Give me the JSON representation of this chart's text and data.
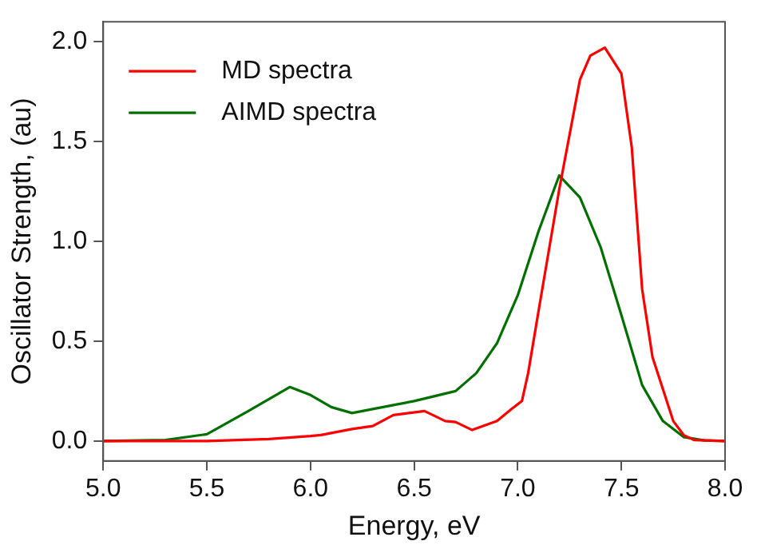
{
  "chart_data": {
    "type": "line",
    "xlabel": "Energy, eV",
    "ylabel": "Oscillator Strength, (au)",
    "xlim": [
      5.0,
      8.0
    ],
    "xticks": [
      {
        "value": 5,
        "label": "5.0"
      },
      5.5,
      {
        "value": 6,
        "label": "6.0"
      },
      6.5,
      {
        "value": 7,
        "label": "7.0"
      },
      7.5,
      {
        "value": 8,
        "label": "8.0"
      }
    ],
    "ylim": [
      -0.1,
      2.1
    ],
    "yticks": [
      {
        "value": 0,
        "label": "0.0"
      },
      0.5,
      {
        "value": 1,
        "label": "1.0"
      },
      1.5,
      {
        "value": 2,
        "label": "2.0"
      }
    ],
    "grid": false,
    "legend": "top left",
    "marker": "none",
    "line_style": "solid",
    "series": [
      {
        "name": "MD spectra",
        "color": "#ff0000",
        "x": [
          5.0,
          5.5,
          5.8,
          6.0,
          6.05,
          6.2,
          6.3,
          6.4,
          6.55,
          6.65,
          6.7,
          6.78,
          6.9,
          6.97,
          7.02,
          7.05,
          7.1,
          7.2,
          7.3,
          7.35,
          7.42,
          7.5,
          7.55,
          7.6,
          7.65,
          7.7,
          7.75,
          7.8,
          7.85,
          8.0
        ],
        "values": [
          0,
          0,
          0.01,
          0.025,
          0.03,
          0.06,
          0.075,
          0.13,
          0.15,
          0.1,
          0.095,
          0.055,
          0.1,
          0.16,
          0.2,
          0.34,
          0.65,
          1.26,
          1.81,
          1.93,
          1.97,
          1.84,
          1.47,
          0.76,
          0.42,
          0.26,
          0.1,
          0.03,
          0.005,
          0
        ]
      },
      {
        "name": "AIMD spectra",
        "color": "#007000",
        "x": [
          5.0,
          5.3,
          5.5,
          5.7,
          5.9,
          6.0,
          6.1,
          6.2,
          6.4,
          6.5,
          6.7,
          6.8,
          6.9,
          7.0,
          7.1,
          7.2,
          7.3,
          7.4,
          7.5,
          7.6,
          7.7,
          7.8,
          7.9,
          8.0
        ],
        "values": [
          0,
          0.005,
          0.034,
          0.15,
          0.27,
          0.23,
          0.17,
          0.14,
          0.18,
          0.2,
          0.25,
          0.34,
          0.49,
          0.73,
          1.05,
          1.33,
          1.22,
          0.97,
          0.63,
          0.28,
          0.1,
          0.02,
          0.003,
          0
        ]
      }
    ]
  }
}
